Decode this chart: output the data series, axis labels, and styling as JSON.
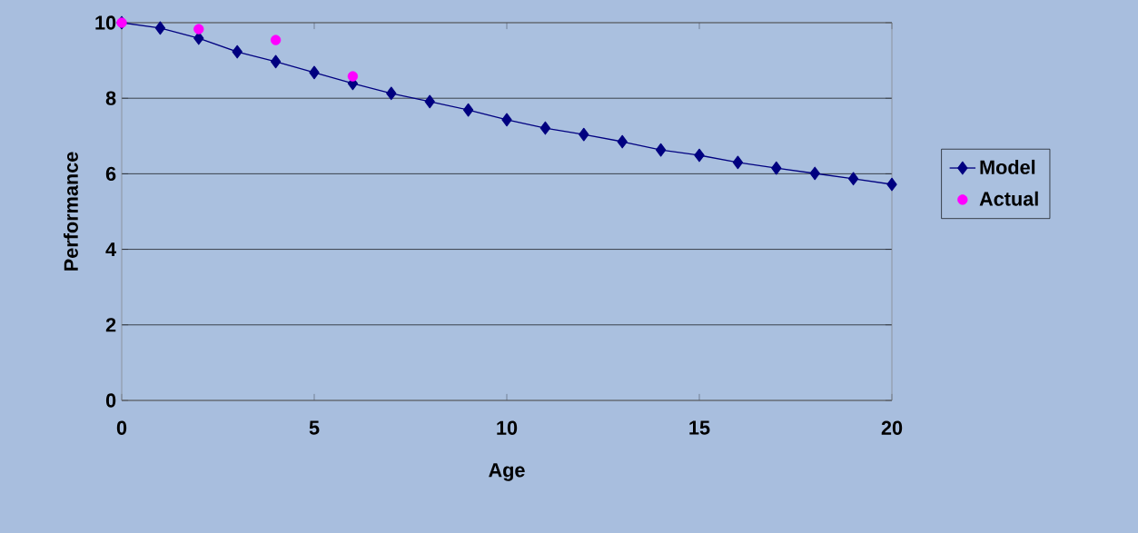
{
  "chart_data": {
    "type": "line",
    "xlabel": "Age",
    "ylabel": "Performance",
    "xlim": [
      0,
      20
    ],
    "ylim": [
      0,
      10
    ],
    "xticks": [
      0,
      5,
      10,
      15,
      20
    ],
    "yticks": [
      0,
      2,
      4,
      6,
      8,
      10
    ],
    "grid": "y",
    "legend": "right",
    "series": [
      {
        "name": "Model",
        "color": "#000080",
        "marker": "diamond",
        "line_style": "solid",
        "x": [
          0,
          1,
          2,
          3,
          4,
          5,
          6,
          7,
          8,
          9,
          10,
          11,
          12,
          13,
          14,
          15,
          16,
          17,
          18,
          19,
          20
        ],
        "values": [
          10.0,
          9.86,
          9.59,
          9.23,
          8.97,
          8.68,
          8.39,
          8.13,
          7.91,
          7.69,
          7.43,
          7.21,
          7.04,
          6.85,
          6.63,
          6.49,
          6.3,
          6.15,
          6.01,
          5.87,
          5.72
        ]
      },
      {
        "name": "Actual",
        "type": "scatter",
        "color": "#ff00ff",
        "marker": "circle",
        "x": [
          0,
          2,
          4,
          6
        ],
        "values": [
          10.0,
          9.83,
          9.54,
          8.58
        ]
      }
    ]
  }
}
